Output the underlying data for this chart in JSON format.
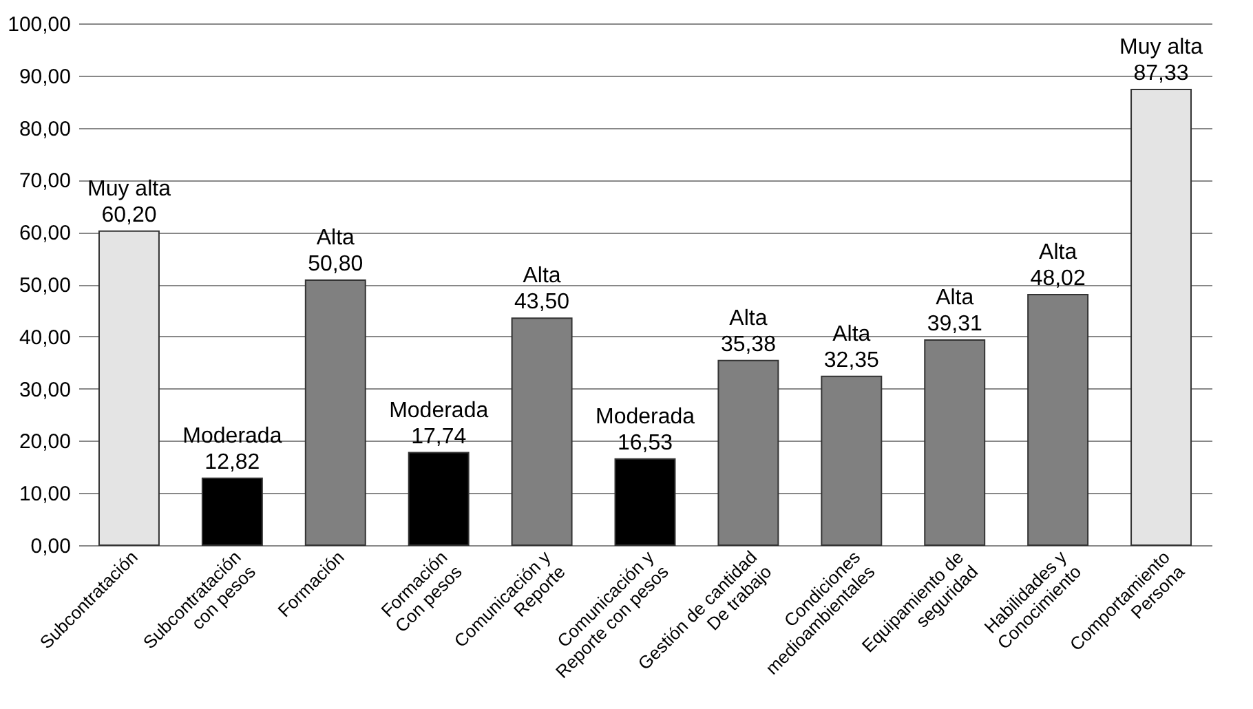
{
  "chart_data": {
    "type": "bar",
    "categories": [
      "Subcontratación",
      "Subcontratación\ncon pesos",
      "Formación",
      "Formación\nCon pesos",
      "Comunicación y\nReporte",
      "Comunicación y\nReporte con pesos",
      "Gestión de cantidad\nDe trabajo",
      "Condiciones\nmedioambientales",
      "Equipamiento de\nseguridad",
      "Habilidades y\nConocimiento",
      "Comportamiento\nPersona"
    ],
    "values": [
      60.2,
      12.82,
      50.8,
      17.74,
      43.5,
      16.53,
      35.38,
      32.35,
      39.31,
      48.02,
      87.33
    ],
    "colors": [
      "#e4e4e4",
      "#000000",
      "#808080",
      "#000000",
      "#808080",
      "#000000",
      "#808080",
      "#808080",
      "#808080",
      "#808080",
      "#e4e4e4"
    ],
    "value_labels": [
      "Muy alta\n60,20",
      "Moderada\n12,82",
      "Alta\n50,80",
      "Moderada\n17,74",
      "Alta\n43,50",
      "Moderada\n16,53",
      "Alta\n35,38",
      "Alta\n32,35",
      "Alta\n39,31",
      "Alta\n48,02",
      "Muy alta\n87,33"
    ],
    "ylim": [
      0,
      100
    ],
    "yticks": [
      {
        "value": 0,
        "label": "0,00"
      },
      {
        "value": 10,
        "label": "10,00"
      },
      {
        "value": 20,
        "label": "20,00"
      },
      {
        "value": 30,
        "label": "30,00"
      },
      {
        "value": 40,
        "label": "40,00"
      },
      {
        "value": 50,
        "label": "50,00"
      },
      {
        "value": 60,
        "label": "60,00"
      },
      {
        "value": 70,
        "label": "70,00"
      },
      {
        "value": 80,
        "label": "80,00"
      },
      {
        "value": 90,
        "label": "90,00"
      },
      {
        "value": 100,
        "label": "100,00"
      }
    ],
    "grid": true
  }
}
